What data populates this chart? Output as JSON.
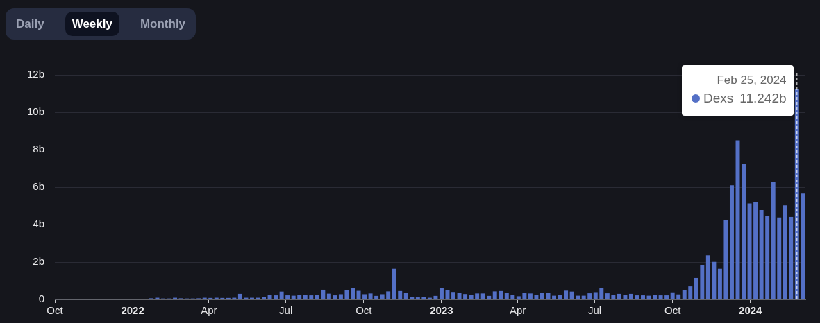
{
  "chart_data": {
    "type": "bar",
    "x": [
      "2022-01-23",
      "2022-01-30",
      "2022-02-06",
      "2022-02-13",
      "2022-02-20",
      "2022-02-27",
      "2022-03-06",
      "2022-03-13",
      "2022-03-20",
      "2022-03-27",
      "2022-04-03",
      "2022-04-10",
      "2022-04-17",
      "2022-04-24",
      "2022-05-01",
      "2022-05-08",
      "2022-05-15",
      "2022-05-22",
      "2022-05-29",
      "2022-06-05",
      "2022-06-12",
      "2022-06-19",
      "2022-06-26",
      "2022-07-03",
      "2022-07-10",
      "2022-07-17",
      "2022-07-24",
      "2022-07-31",
      "2022-08-07",
      "2022-08-14",
      "2022-08-21",
      "2022-08-28",
      "2022-09-04",
      "2022-09-11",
      "2022-09-18",
      "2022-09-25",
      "2022-10-02",
      "2022-10-09",
      "2022-10-16",
      "2022-10-23",
      "2022-10-30",
      "2022-11-06",
      "2022-11-13",
      "2022-11-20",
      "2022-11-27",
      "2022-12-04",
      "2022-12-11",
      "2022-12-18",
      "2022-12-25",
      "2023-01-01",
      "2023-01-08",
      "2023-01-15",
      "2023-01-22",
      "2023-01-29",
      "2023-02-05",
      "2023-02-12",
      "2023-02-19",
      "2023-02-26",
      "2023-03-05",
      "2023-03-12",
      "2023-03-19",
      "2023-03-26",
      "2023-04-02",
      "2023-04-09",
      "2023-04-16",
      "2023-04-23",
      "2023-04-30",
      "2023-05-07",
      "2023-05-14",
      "2023-05-21",
      "2023-05-28",
      "2023-06-04",
      "2023-06-11",
      "2023-06-18",
      "2023-06-25",
      "2023-07-02",
      "2023-07-09",
      "2023-07-16",
      "2023-07-23",
      "2023-07-30",
      "2023-08-06",
      "2023-08-13",
      "2023-08-20",
      "2023-08-27",
      "2023-09-03",
      "2023-09-10",
      "2023-09-17",
      "2023-09-24",
      "2023-10-01",
      "2023-10-08",
      "2023-10-15",
      "2023-10-22",
      "2023-10-29",
      "2023-11-05",
      "2023-11-12",
      "2023-11-19",
      "2023-11-26",
      "2023-12-03",
      "2023-12-10",
      "2023-12-17",
      "2023-12-24",
      "2023-12-31",
      "2024-01-07",
      "2024-01-14",
      "2024-01-21",
      "2024-01-28",
      "2024-02-04",
      "2024-02-11",
      "2024-02-18",
      "2024-02-25",
      "2024-03-03"
    ],
    "series": [
      {
        "name": "Dexs",
        "color": "#5470c6",
        "values": [
          0.06,
          0.09,
          0.05,
          0.05,
          0.09,
          0.06,
          0.05,
          0.05,
          0.06,
          0.09,
          0.08,
          0.09,
          0.08,
          0.08,
          0.09,
          0.3,
          0.09,
          0.09,
          0.09,
          0.12,
          0.25,
          0.22,
          0.42,
          0.22,
          0.2,
          0.26,
          0.26,
          0.22,
          0.26,
          0.52,
          0.31,
          0.22,
          0.28,
          0.49,
          0.6,
          0.46,
          0.28,
          0.32,
          0.19,
          0.28,
          0.43,
          1.64,
          0.45,
          0.35,
          0.12,
          0.11,
          0.14,
          0.09,
          0.19,
          0.62,
          0.49,
          0.4,
          0.35,
          0.29,
          0.23,
          0.32,
          0.32,
          0.19,
          0.43,
          0.45,
          0.35,
          0.23,
          0.17,
          0.35,
          0.32,
          0.26,
          0.35,
          0.35,
          0.2,
          0.23,
          0.47,
          0.42,
          0.2,
          0.2,
          0.33,
          0.39,
          0.62,
          0.33,
          0.26,
          0.3,
          0.26,
          0.3,
          0.22,
          0.22,
          0.2,
          0.26,
          0.22,
          0.22,
          0.38,
          0.27,
          0.5,
          0.7,
          1.15,
          1.85,
          2.36,
          2.01,
          1.64,
          4.26,
          6.1,
          8.5,
          7.25,
          5.13,
          5.22,
          4.78,
          4.47,
          6.26,
          4.38,
          5.03,
          4.41,
          11.242,
          5.66
        ]
      }
    ],
    "xlim": [
      "2021-10-01",
      "2024-03-06"
    ],
    "xticks": [
      {
        "value": "2021-10-01",
        "label": "Oct"
      },
      {
        "value": "2022-01-01",
        "label": "2022"
      },
      {
        "value": "2022-04-01",
        "label": "Apr"
      },
      {
        "value": "2022-07-01",
        "label": "Jul"
      },
      {
        "value": "2022-10-01",
        "label": "Oct"
      },
      {
        "value": "2023-01-01",
        "label": "2023"
      },
      {
        "value": "2023-04-01",
        "label": "Apr"
      },
      {
        "value": "2023-07-01",
        "label": "Jul"
      },
      {
        "value": "2023-10-01",
        "label": "Oct"
      },
      {
        "value": "2024-01-01",
        "label": "2024"
      }
    ],
    "ylim": [
      0,
      12
    ],
    "yticks": [
      0,
      {
        "value": 2,
        "label": "2b"
      },
      {
        "value": 4,
        "label": "4b"
      },
      {
        "value": 6,
        "label": "6b"
      },
      {
        "value": 8,
        "label": "8b"
      },
      {
        "value": 10,
        "label": "10b"
      },
      {
        "value": 12,
        "label": "12b"
      }
    ],
    "grid": "y",
    "ref_lines": [
      {
        "axis": "x",
        "value": "2024-02-25",
        "line_style": "dashed",
        "color": "#ffffff"
      }
    ],
    "annotations": [
      "Daily",
      "Weekly",
      "Monthly",
      {
        "text": "Feb 25, 2024",
        "x": "2024-02-25",
        "y": 11.242
      },
      {
        "text": "11.242b",
        "x": "2024-02-25",
        "y": 11.242
      }
    ]
  }
}
